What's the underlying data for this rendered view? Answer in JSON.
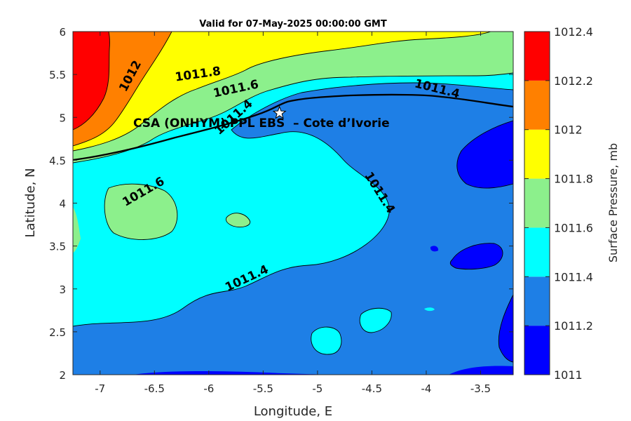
{
  "chart_data": {
    "type": "heatmap",
    "title": "Valid for 07-May-2025 00:00:00 GMT",
    "xlabel": "Longitude, E",
    "ylabel": "Latitude, N",
    "xlim": [
      -7.25,
      -3.2
    ],
    "ylim": [
      2,
      6
    ],
    "xticks": [
      -7,
      -6.5,
      -6,
      -5.5,
      -5,
      -4.5,
      -4,
      -3.5
    ],
    "yticks": [
      2,
      2.5,
      3,
      3.5,
      4,
      4.5,
      5,
      5.5,
      6
    ],
    "grid": false,
    "colorbar": {
      "label": "Surface Pressure, mb",
      "levels": [
        1011,
        1011.2,
        1011.4,
        1011.6,
        1011.8,
        1012,
        1012.2,
        1012.4
      ],
      "colors": [
        "#0000ff",
        "#1e7fe6",
        "#00ffff",
        "#8cf08c",
        "#ffff00",
        "#ff8000",
        "#ff0000",
        "#800000"
      ]
    },
    "contour_labels": [
      {
        "text": "1012",
        "lon": -6.72,
        "lat": 5.48,
        "angle": -62
      },
      {
        "text": "1011.8",
        "lon": -6.1,
        "lat": 5.5,
        "angle": -8
      },
      {
        "text": "1011.6",
        "lon": -5.75,
        "lat": 5.33,
        "angle": -12
      },
      {
        "text": "1011.4",
        "lon": -5.77,
        "lat": 5.0,
        "angle": -42
      },
      {
        "text": "1011.6",
        "lon": -6.6,
        "lat": 4.13,
        "angle": -30
      },
      {
        "text": "1011.4",
        "lon": -5.65,
        "lat": 3.12,
        "angle": -25
      },
      {
        "text": "1011.4",
        "lon": -4.43,
        "lat": 4.12,
        "angle": 58
      },
      {
        "text": "1011.4",
        "lon": -3.9,
        "lat": 5.33,
        "angle": 14
      }
    ],
    "site": {
      "label": "CSA (ONHYM) PPL EBS  – Cote d’Ivorie",
      "lon": -5.35,
      "lat": 5.05
    }
  }
}
